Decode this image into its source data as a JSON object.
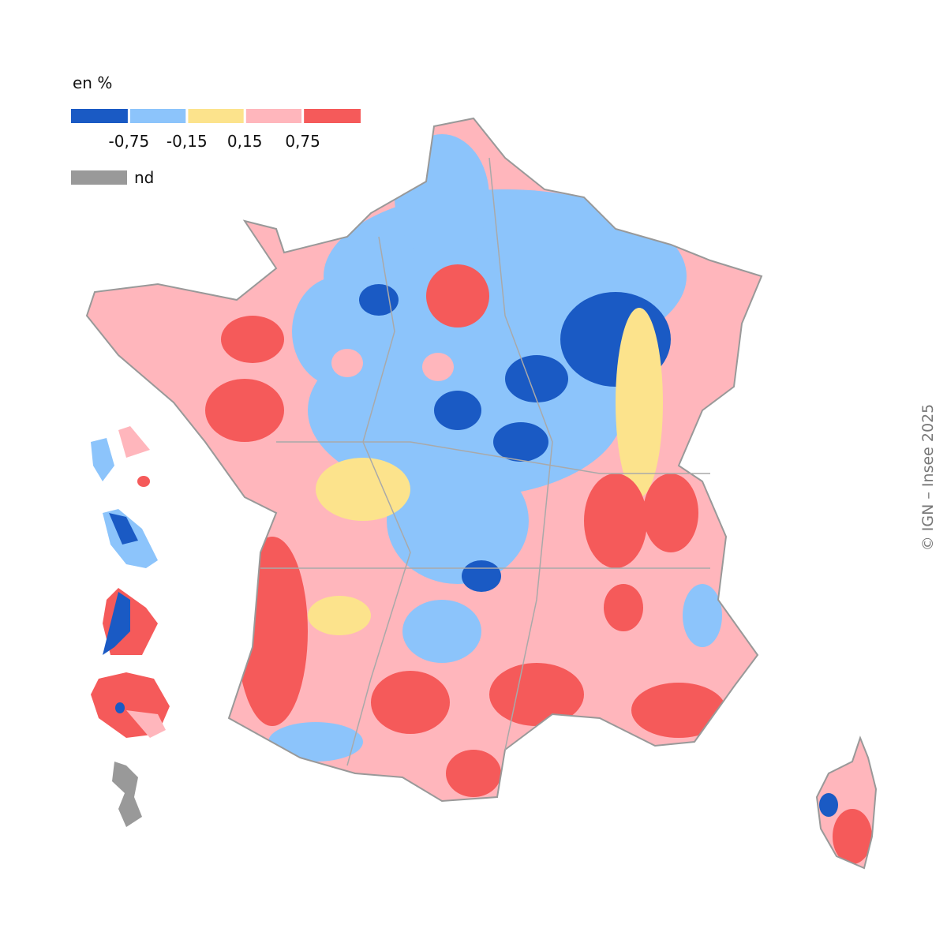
{
  "legend": {
    "title": "en %",
    "classes": [
      {
        "color": "#1a5ac4"
      },
      {
        "color": "#8cc4fb"
      },
      {
        "color": "#fce38c"
      },
      {
        "color": "#ffb6bc"
      },
      {
        "color": "#f55a5a"
      }
    ],
    "breaks": [
      {
        "value": -0.75,
        "label": "-0,75"
      },
      {
        "value": -0.15,
        "label": "-0,15"
      },
      {
        "value": 0.15,
        "label": "0,15"
      },
      {
        "value": 0.75,
        "label": "0,75"
      }
    ],
    "nd": {
      "label": "nd",
      "color": "#999999"
    }
  },
  "credit": "© IGN – Insee 2025"
}
